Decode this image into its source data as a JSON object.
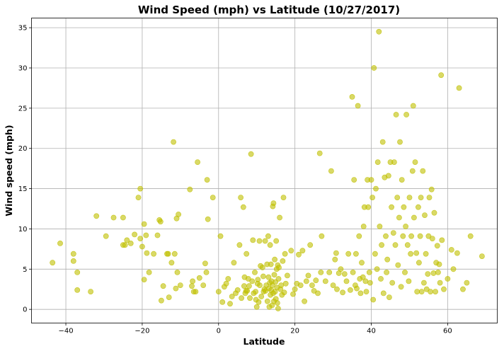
{
  "chart_data": {
    "type": "scatter",
    "title": "Wind Speed (mph) vs Latitude (10/27/2017)",
    "xlabel": "Latitude",
    "ylabel": "Wind speed (mph)",
    "xlim": [
      -49,
      73
    ],
    "ylim": [
      -1.7,
      36.2
    ],
    "xticks": [
      -40,
      -20,
      0,
      20,
      40,
      60
    ],
    "yticks": [
      0,
      5,
      10,
      15,
      20,
      25,
      30,
      35
    ],
    "grid": true,
    "marker_color": "#bfbf00",
    "marker_opacity": 0.6,
    "points": [
      [
        -43.5,
        5.8
      ],
      [
        -41.5,
        8.2
      ],
      [
        -38,
        6.9
      ],
      [
        -38,
        6.0
      ],
      [
        -37,
        4.6
      ],
      [
        -37,
        2.4
      ],
      [
        -33.5,
        2.2
      ],
      [
        -32,
        11.6
      ],
      [
        -29.5,
        9.1
      ],
      [
        -27.5,
        11.4
      ],
      [
        -25,
        11.4
      ],
      [
        -25,
        8.0
      ],
      [
        -24.5,
        8.0
      ],
      [
        -24,
        8.6
      ],
      [
        -23,
        8.2
      ],
      [
        -22,
        9.3
      ],
      [
        -21,
        13.9
      ],
      [
        -20.5,
        15.0
      ],
      [
        -20.5,
        8.8
      ],
      [
        -20,
        7.8
      ],
      [
        -19.5,
        10.6
      ],
      [
        -19.5,
        3.7
      ],
      [
        -19,
        9.2
      ],
      [
        -18.8,
        7.0
      ],
      [
        -18.2,
        4.6
      ],
      [
        -17,
        6.9
      ],
      [
        -16,
        9.2
      ],
      [
        -15.5,
        11.1
      ],
      [
        -15.2,
        10.9
      ],
      [
        -15,
        1.1
      ],
      [
        -14.5,
        2.9
      ],
      [
        -13.5,
        6.9
      ],
      [
        -13.2,
        6.9
      ],
      [
        -13,
        1.5
      ],
      [
        -12.3,
        5.8
      ],
      [
        -11.8,
        20.8
      ],
      [
        -11.5,
        6.9
      ],
      [
        -11.2,
        2.6
      ],
      [
        -11,
        11.3
      ],
      [
        -10.8,
        4.6
      ],
      [
        -10.5,
        11.8
      ],
      [
        -10,
        3.0
      ],
      [
        -7.5,
        14.9
      ],
      [
        -7,
        2.9
      ],
      [
        -6.8,
        3.5
      ],
      [
        -6.5,
        2.2
      ],
      [
        -6,
        2.2
      ],
      [
        -5.5,
        18.3
      ],
      [
        -5,
        3.9
      ],
      [
        -4,
        3.0
      ],
      [
        -3.5,
        5.7
      ],
      [
        -3.2,
        4.6
      ],
      [
        -3,
        16.1
      ],
      [
        -2.8,
        11.2
      ],
      [
        -1.5,
        13.9
      ],
      [
        0,
        2.2
      ],
      [
        0.5,
        9.1
      ],
      [
        1,
        0.9
      ],
      [
        1.5,
        2.8
      ],
      [
        2,
        3.2
      ],
      [
        2.5,
        3.8
      ],
      [
        3,
        0.7
      ],
      [
        3.5,
        1.6
      ],
      [
        4,
        5.8
      ],
      [
        4.5,
        2.0
      ],
      [
        5,
        2.4
      ],
      [
        5.5,
        8.0
      ],
      [
        5.8,
        13.9
      ],
      [
        6,
        1.4
      ],
      [
        6.5,
        12.7
      ],
      [
        6.7,
        2.9
      ],
      [
        6.8,
        4.0
      ],
      [
        7,
        2.0
      ],
      [
        7.2,
        2.3
      ],
      [
        7.3,
        6.9
      ],
      [
        7.5,
        2.3
      ],
      [
        7.8,
        3.8
      ],
      [
        8,
        2.9
      ],
      [
        8.2,
        1.4
      ],
      [
        8.5,
        19.3
      ],
      [
        8.8,
        3.5
      ],
      [
        9,
        8.6
      ],
      [
        9.2,
        2.0
      ],
      [
        9.5,
        4.6
      ],
      [
        9.7,
        2.2
      ],
      [
        9.8,
        1.2
      ],
      [
        10,
        0.3
      ],
      [
        10.2,
        3.2
      ],
      [
        10.3,
        3.7
      ],
      [
        10.5,
        0.9
      ],
      [
        10.7,
        8.5
      ],
      [
        10.8,
        3.0
      ],
      [
        11,
        5.4
      ],
      [
        11.2,
        1.6
      ],
      [
        11.5,
        5.2
      ],
      [
        11.7,
        4.1
      ],
      [
        11.8,
        2.2
      ],
      [
        12,
        2.5
      ],
      [
        12.2,
        8.5
      ],
      [
        12.3,
        2.3
      ],
      [
        12.5,
        3.0
      ],
      [
        12.7,
        5.6
      ],
      [
        12.8,
        1.0
      ],
      [
        13,
        9.1
      ],
      [
        13.1,
        4.0
      ],
      [
        13.2,
        2.6
      ],
      [
        13.3,
        0.3
      ],
      [
        13.4,
        3.3
      ],
      [
        13.5,
        8.0
      ],
      [
        13.6,
        1.8
      ],
      [
        13.7,
        5.6
      ],
      [
        13.8,
        2.4
      ],
      [
        13.9,
        3.5
      ],
      [
        14,
        0.5
      ],
      [
        14.1,
        3.0
      ],
      [
        14.2,
        12.8
      ],
      [
        14.3,
        2.0
      ],
      [
        14.4,
        13.2
      ],
      [
        14.5,
        1.0
      ],
      [
        14.6,
        4.3
      ],
      [
        14.7,
        6.2
      ],
      [
        14.8,
        2.2
      ],
      [
        14.9,
        3.4
      ],
      [
        15,
        1.3
      ],
      [
        15.1,
        8.5
      ],
      [
        15.2,
        5.0
      ],
      [
        15.3,
        2.7
      ],
      [
        15.4,
        0.8
      ],
      [
        15.5,
        5.5
      ],
      [
        15.6,
        0.1
      ],
      [
        15.7,
        3.8
      ],
      [
        15.8,
        5.2
      ],
      [
        16,
        11.4
      ],
      [
        16.2,
        2.5
      ],
      [
        16.4,
        3.0
      ],
      [
        16.6,
        1.8
      ],
      [
        16.8,
        6.0
      ],
      [
        17,
        13.9
      ],
      [
        17.2,
        2.1
      ],
      [
        17.4,
        6.9
      ],
      [
        17.6,
        3.2
      ],
      [
        18,
        4.2
      ],
      [
        19,
        7.3
      ],
      [
        19.5,
        1.9
      ],
      [
        20,
        2.5
      ],
      [
        20.5,
        3.2
      ],
      [
        21,
        6.8
      ],
      [
        21.5,
        3.0
      ],
      [
        22,
        7.3
      ],
      [
        22.5,
        1.0
      ],
      [
        23,
        3.5
      ],
      [
        23.5,
        4.2
      ],
      [
        24,
        8.0
      ],
      [
        24.5,
        3.0
      ],
      [
        25,
        2.3
      ],
      [
        25.5,
        3.6
      ],
      [
        26,
        2.0
      ],
      [
        26.5,
        19.4
      ],
      [
        26.8,
        4.6
      ],
      [
        27,
        9.1
      ],
      [
        28,
        3.5
      ],
      [
        29,
        4.6
      ],
      [
        29.5,
        17.2
      ],
      [
        30,
        3.0
      ],
      [
        30.5,
        6.2
      ],
      [
        30.8,
        7.0
      ],
      [
        31,
        2.5
      ],
      [
        31.5,
        4.5
      ],
      [
        32,
        5.0
      ],
      [
        32.5,
        2.1
      ],
      [
        33,
        4.4
      ],
      [
        33.5,
        3.5
      ],
      [
        34,
        6.9
      ],
      [
        34.5,
        2.4
      ],
      [
        35,
        26.4
      ],
      [
        35.2,
        4.6
      ],
      [
        35.5,
        16.1
      ],
      [
        35.8,
        3.0
      ],
      [
        36,
        6.9
      ],
      [
        36.2,
        2.6
      ],
      [
        36.5,
        25.3
      ],
      [
        36.8,
        9.1
      ],
      [
        37,
        3.8
      ],
      [
        37.2,
        2.0
      ],
      [
        37.5,
        5.8
      ],
      [
        37.8,
        4.0
      ],
      [
        38,
        10.3
      ],
      [
        38.2,
        12.7
      ],
      [
        38.5,
        3.5
      ],
      [
        38.7,
        2.2
      ],
      [
        39,
        16.1
      ],
      [
        39.2,
        12.7
      ],
      [
        39.5,
        4.6
      ],
      [
        39.7,
        3.3
      ],
      [
        40,
        16.1
      ],
      [
        40.3,
        13.9
      ],
      [
        40.5,
        1.2
      ],
      [
        40.7,
        30.0
      ],
      [
        41,
        6.9
      ],
      [
        41.2,
        15.0
      ],
      [
        41.5,
        5.0
      ],
      [
        41.7,
        18.3
      ],
      [
        42,
        34.5
      ],
      [
        42.2,
        10.3
      ],
      [
        42.5,
        3.8
      ],
      [
        42.7,
        8.0
      ],
      [
        43,
        20.8
      ],
      [
        43.2,
        2.0
      ],
      [
        43.5,
        16.4
      ],
      [
        43.8,
        9.1
      ],
      [
        44,
        4.6
      ],
      [
        44.2,
        6.2
      ],
      [
        44.5,
        16.6
      ],
      [
        44.7,
        1.5
      ],
      [
        45,
        18.3
      ],
      [
        45.3,
        12.7
      ],
      [
        45.5,
        3.3
      ],
      [
        45.8,
        9.5
      ],
      [
        46,
        18.3
      ],
      [
        46.3,
        8.0
      ],
      [
        46.5,
        24.2
      ],
      [
        46.8,
        13.9
      ],
      [
        47,
        5.5
      ],
      [
        47.3,
        11.4
      ],
      [
        47.5,
        20.8
      ],
      [
        47.8,
        2.8
      ],
      [
        48,
        16.1
      ],
      [
        48.3,
        9.1
      ],
      [
        48.5,
        12.7
      ],
      [
        48.8,
        4.6
      ],
      [
        49,
        10.3
      ],
      [
        49.2,
        24.2
      ],
      [
        49.5,
        8.0
      ],
      [
        49.8,
        3.5
      ],
      [
        50,
        13.9
      ],
      [
        50.3,
        6.9
      ],
      [
        50.5,
        9.1
      ],
      [
        50.8,
        17.2
      ],
      [
        51,
        25.3
      ],
      [
        51.2,
        11.4
      ],
      [
        51.5,
        18.3
      ],
      [
        51.8,
        7.0
      ],
      [
        52,
        2.2
      ],
      [
        52.3,
        12.7
      ],
      [
        52.5,
        5.8
      ],
      [
        52.8,
        9.1
      ],
      [
        53,
        13.9
      ],
      [
        53.2,
        2.2
      ],
      [
        53.5,
        17.2
      ],
      [
        53.8,
        3.3
      ],
      [
        54,
        11.7
      ],
      [
        54.3,
        6.9
      ],
      [
        54.5,
        2.5
      ],
      [
        54.8,
        4.4
      ],
      [
        55,
        9.1
      ],
      [
        55.2,
        13.9
      ],
      [
        55.5,
        2.2
      ],
      [
        55.8,
        14.9
      ],
      [
        56,
        8.8
      ],
      [
        56.3,
        4.5
      ],
      [
        56.5,
        12.0
      ],
      [
        56.8,
        2.2
      ],
      [
        57,
        5.8
      ],
      [
        57.3,
        7.9
      ],
      [
        57.5,
        4.6
      ],
      [
        57.8,
        5.6
      ],
      [
        58,
        3.3
      ],
      [
        58.3,
        29.1
      ],
      [
        58.5,
        8.6
      ],
      [
        59,
        2.5
      ],
      [
        60,
        3.8
      ],
      [
        61,
        7.4
      ],
      [
        61.5,
        5.0
      ],
      [
        62.5,
        7.0
      ],
      [
        63,
        27.5
      ],
      [
        64,
        2.5
      ],
      [
        65,
        3.3
      ],
      [
        66,
        9.1
      ],
      [
        69,
        6.6
      ]
    ]
  }
}
